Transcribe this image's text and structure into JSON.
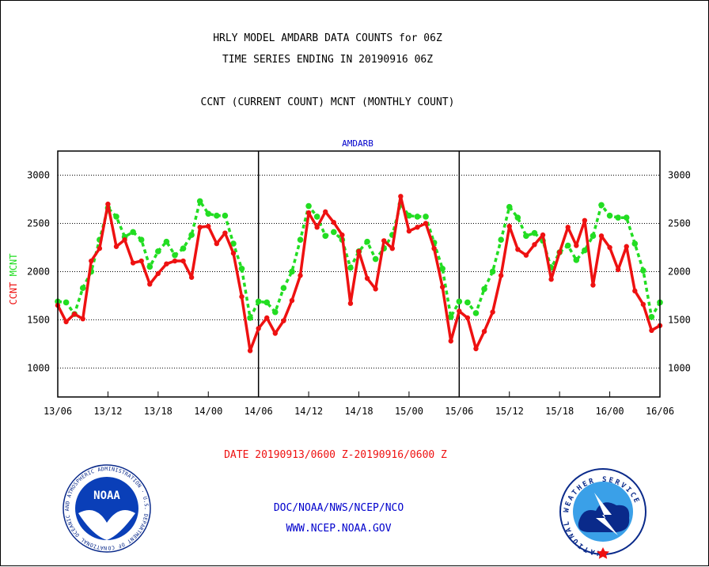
{
  "header": {
    "title_line1": "HRLY MODEL AMDARB DATA COUNTS for 06Z",
    "title_line2": "TIME SERIES ENDING IN 20190916 06Z",
    "subtitle": "CCNT (CURRENT COUNT) MCNT (MONTHLY COUNT)"
  },
  "footer": {
    "date_range": "DATE 20190913/0600 Z-20190916/0600 Z",
    "org_line": "DOC/NOAA/NWS/NCEP/NCO",
    "url": "WWW.NCEP.NOAA.GOV",
    "noaa_logo_text": "NOAA",
    "noaa_ring_text": "NATIONAL OCEANIC AND ATMOSPHERIC ADMINISTRATION · U.S. DEPARTMENT OF COMMERCE",
    "nws_ring_text": "NATIONAL WEATHER SERVICE"
  },
  "colors": {
    "ccnt": "#ee1111",
    "mcnt": "#22dd22",
    "title_blue": "#0000cc",
    "date_red": "#ee1111"
  },
  "chart_data": {
    "type": "line",
    "title": "AMDARB",
    "ylabel_series": [
      "CCNT",
      "MCNT"
    ],
    "ylim": [
      700,
      3250
    ],
    "yticks": [
      1000,
      1500,
      2000,
      2500,
      3000
    ],
    "xticks": [
      "13/06",
      "13/12",
      "13/18",
      "14/00",
      "14/06",
      "14/12",
      "14/18",
      "15/00",
      "15/06",
      "15/12",
      "15/18",
      "16/00",
      "16/06"
    ],
    "day_separators": [
      "14/06",
      "15/06"
    ],
    "grid": true,
    "series": [
      {
        "name": "CCNT",
        "values": [
          1650,
          1480,
          1560,
          1510,
          2110,
          2240,
          2700,
          2260,
          2330,
          2090,
          2110,
          1870,
          1980,
          2080,
          2110,
          2110,
          1940,
          2460,
          2470,
          2290,
          2400,
          2190,
          1740,
          1180,
          1410,
          1520,
          1360,
          1490,
          1700,
          1960,
          2610,
          2460,
          2620,
          2510,
          2380,
          1670,
          2210,
          1930,
          1820,
          2320,
          2240,
          2780,
          2420,
          2460,
          2500,
          2240,
          1840,
          1280,
          1590,
          1520,
          1200,
          1380,
          1580,
          1960,
          2470,
          2230,
          2170,
          2280,
          2380,
          1920,
          2200,
          2460,
          2270,
          2530,
          1860,
          2370,
          2250,
          2020,
          2260,
          1800,
          1660,
          1390,
          1440
        ]
      },
      {
        "name": "MCNT",
        "values": [
          1690,
          1680,
          1560,
          1830,
          2000,
          2330,
          2660,
          2570,
          2360,
          2410,
          2330,
          2050,
          2210,
          2310,
          2170,
          2240,
          2380,
          2730,
          2600,
          2580,
          2580,
          2290,
          2030,
          1520,
          1690,
          1680,
          1580,
          1830,
          2000,
          2330,
          2680,
          2570,
          2370,
          2410,
          2330,
          2040,
          2210,
          2310,
          2130,
          2240,
          2380,
          2700,
          2580,
          2570,
          2570,
          2300,
          2030,
          1530,
          1690,
          1680,
          1570,
          1820,
          2000,
          2330,
          2670,
          2560,
          2370,
          2400,
          2320,
          2040,
          2200,
          2270,
          2120,
          2220,
          2370,
          2690,
          2580,
          2560,
          2560,
          2290,
          2010,
          1530,
          1680
        ]
      }
    ]
  }
}
